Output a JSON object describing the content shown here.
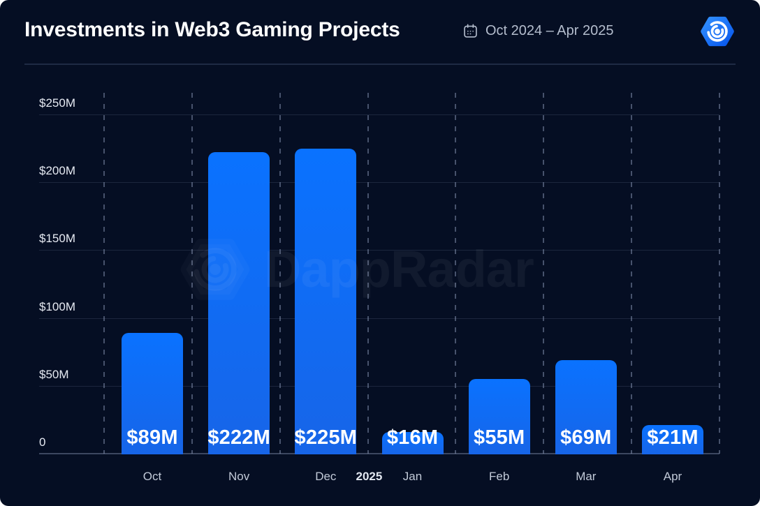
{
  "header": {
    "title": "Investments in Web3 Gaming Projects",
    "period": "Oct 2024 – Apr 2025"
  },
  "watermark": {
    "text": "DappRadar"
  },
  "colors": {
    "background": "#050E23",
    "bar_top": "#0A72FF",
    "bar_bottom": "#1765E8",
    "logo_blue": "#1C7BFF",
    "text_primary": "#FFFFFF",
    "text_muted": "#B4BDCD"
  },
  "chart_data": {
    "type": "bar",
    "title": "Investments in Web3 Gaming Projects",
    "period": "Oct 2024 – Apr 2025",
    "categories": [
      "Oct",
      "Nov",
      "Dec",
      "Jan",
      "Feb",
      "Mar",
      "Apr"
    ],
    "values": [
      89,
      222,
      225,
      16,
      55,
      69,
      21
    ],
    "value_labels": [
      "$89M",
      "$222M",
      "$225M",
      "$16M",
      "$55M",
      "$69M",
      "$21M"
    ],
    "y_ticks": [
      {
        "value": 250,
        "label": "$250M"
      },
      {
        "value": 200,
        "label": "$200M"
      },
      {
        "value": 150,
        "label": "$150M"
      },
      {
        "value": 100,
        "label": "$100M"
      },
      {
        "value": 50,
        "label": "$50M"
      },
      {
        "value": 0,
        "label": "0"
      }
    ],
    "ylim": [
      0,
      250
    ],
    "year_marker": {
      "label": "2025",
      "after_category_index": 2
    },
    "grid": {
      "horizontal": "solid",
      "vertical": "dashed"
    },
    "legend": "none"
  }
}
